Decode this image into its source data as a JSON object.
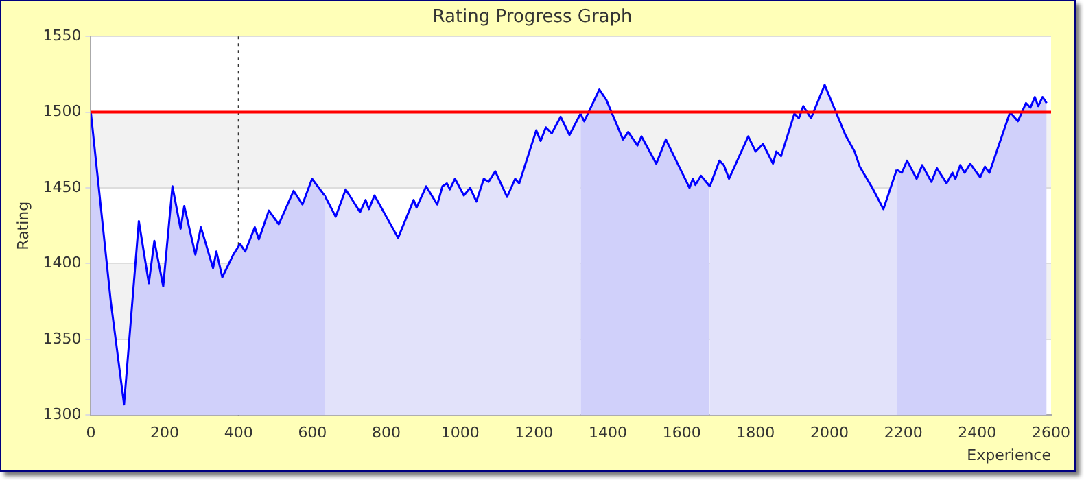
{
  "chart_data": {
    "type": "area",
    "title": "Rating Progress Graph",
    "xlabel": "Experience",
    "ylabel": "Rating",
    "xlim": [
      0,
      2600
    ],
    "xticks": [
      0,
      200,
      400,
      600,
      800,
      1000,
      1200,
      1400,
      1600,
      1800,
      2000,
      2200,
      2400,
      2600
    ],
    "ylim": [
      1300,
      1550
    ],
    "yticks": [
      1300,
      1350,
      1400,
      1450,
      1500,
      1550
    ],
    "grid": "y",
    "legend": false,
    "marker": "none",
    "line_style": "solid",
    "series": [
      {
        "color": "#0000ff",
        "x": [
          0,
          54,
          90,
          130,
          157,
          172,
          196,
          221,
          243,
          253,
          283,
          298,
          331,
          340,
          356,
          386,
          404,
          418,
          444,
          455,
          482,
          509,
          549,
          573,
          599,
          633
        ],
        "values": [
          1500,
          1375,
          1307,
          1428,
          1387,
          1415,
          1385,
          1451,
          1423,
          1438,
          1406,
          1424,
          1397,
          1408,
          1391,
          1406,
          1413,
          1408,
          1424,
          1416,
          1435,
          1426,
          1448,
          1439,
          1456,
          1445
        ]
      },
      {
        "color": "#0000ff",
        "x": [
          633,
          663,
          690,
          729,
          744,
          753,
          768,
          832,
          874,
          882,
          908,
          938,
          952,
          964,
          972,
          986,
          1010,
          1027,
          1044,
          1064,
          1077,
          1095,
          1127,
          1149,
          1160,
          1206,
          1218,
          1232,
          1248,
          1272,
          1296,
          1326
        ],
        "values": [
          1445,
          1431,
          1449,
          1434,
          1442,
          1436,
          1445,
          1417,
          1442,
          1437,
          1451,
          1439,
          1451,
          1453,
          1449,
          1456,
          1445,
          1450,
          1441,
          1456,
          1454,
          1461,
          1444,
          1456,
          1453,
          1488,
          1481,
          1490,
          1486,
          1497,
          1485,
          1499
        ]
      },
      {
        "color": "#0000ff",
        "x": [
          1326,
          1336,
          1377,
          1396,
          1441,
          1455,
          1480,
          1491,
          1531,
          1557,
          1621,
          1630,
          1637,
          1652,
          1676
        ],
        "values": [
          1499,
          1494,
          1515,
          1508,
          1482,
          1487,
          1478,
          1484,
          1466,
          1482,
          1450,
          1456,
          1452,
          1458,
          1451
        ]
      },
      {
        "color": "#0000ff",
        "x": [
          1676,
          1702,
          1714,
          1728,
          1780,
          1800,
          1820,
          1847,
          1856,
          1869,
          1905,
          1917,
          1929,
          1950,
          1987,
          2043,
          2068,
          2082,
          2116,
          2146,
          2182
        ],
        "values": [
          1451,
          1468,
          1465,
          1456,
          1484,
          1474,
          1479,
          1466,
          1474,
          1471,
          1499,
          1496,
          1504,
          1496,
          1518,
          1485,
          1474,
          1464,
          1450,
          1436,
          1462
        ]
      },
      {
        "color": "#0000ff",
        "x": [
          2182,
          2196,
          2210,
          2236,
          2251,
          2276,
          2291,
          2317,
          2333,
          2341,
          2354,
          2366,
          2381,
          2408,
          2421,
          2433,
          2489,
          2510,
          2532,
          2544,
          2556,
          2565,
          2577,
          2588
        ],
        "values": [
          1462,
          1460,
          1468,
          1456,
          1465,
          1454,
          1463,
          1453,
          1460,
          1456,
          1465,
          1460,
          1466,
          1457,
          1464,
          1460,
          1500,
          1494,
          1506,
          1503,
          1510,
          1504,
          1510,
          1506
        ]
      }
    ],
    "ref_lines": [
      {
        "axis": "y",
        "value": 1500,
        "color": "#ff0000",
        "line_style": "solid"
      },
      {
        "axis": "x",
        "value": 400,
        "color": "#333333",
        "line_style": "dotted"
      }
    ]
  }
}
